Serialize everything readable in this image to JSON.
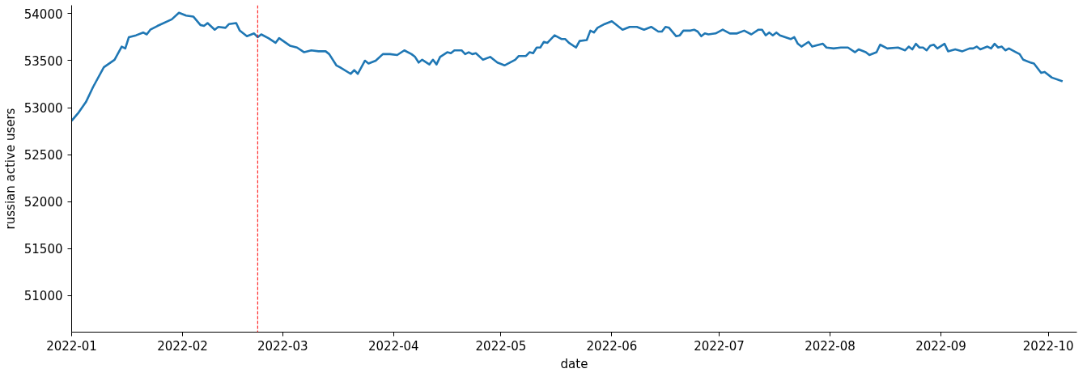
{
  "chart_data": {
    "type": "line",
    "xlabel": "date",
    "ylabel": "russian active users",
    "x": [
      "2022-01-01",
      "2022-01-03",
      "2022-01-05",
      "2022-01-07",
      "2022-01-10",
      "2022-01-13",
      "2022-01-15",
      "2022-01-16",
      "2022-01-17",
      "2022-01-19",
      "2022-01-21",
      "2022-01-22",
      "2022-01-23",
      "2022-01-25",
      "2022-01-29",
      "2022-01-31",
      "2022-02-02",
      "2022-02-04",
      "2022-02-06",
      "2022-02-07",
      "2022-02-08",
      "2022-02-10",
      "2022-02-11",
      "2022-02-13",
      "2022-02-14",
      "2022-02-16",
      "2022-02-17",
      "2022-02-19",
      "2022-02-21",
      "2022-02-22",
      "2022-02-23",
      "2022-02-25",
      "2022-02-27",
      "2022-02-28",
      "2022-03-03",
      "2022-03-05",
      "2022-03-07",
      "2022-03-09",
      "2022-03-11",
      "2022-03-13",
      "2022-03-14",
      "2022-03-16",
      "2022-03-17",
      "2022-03-20",
      "2022-03-21",
      "2022-03-22",
      "2022-03-24",
      "2022-03-25",
      "2022-03-27",
      "2022-03-29",
      "2022-03-31",
      "2022-04-02",
      "2022-04-04",
      "2022-04-06",
      "2022-04-07",
      "2022-04-08",
      "2022-04-09",
      "2022-04-11",
      "2022-04-12",
      "2022-04-13",
      "2022-04-14",
      "2022-04-16",
      "2022-04-17",
      "2022-04-18",
      "2022-04-20",
      "2022-04-21",
      "2022-04-22",
      "2022-04-23",
      "2022-04-24",
      "2022-04-26",
      "2022-04-28",
      "2022-04-30",
      "2022-05-02",
      "2022-05-05",
      "2022-05-06",
      "2022-05-08",
      "2022-05-09",
      "2022-05-10",
      "2022-05-11",
      "2022-05-12",
      "2022-05-13",
      "2022-05-14",
      "2022-05-16",
      "2022-05-18",
      "2022-05-19",
      "2022-05-20",
      "2022-05-22",
      "2022-05-23",
      "2022-05-25",
      "2022-05-26",
      "2022-05-27",
      "2022-05-28",
      "2022-05-30",
      "2022-06-01",
      "2022-06-04",
      "2022-06-06",
      "2022-06-08",
      "2022-06-10",
      "2022-06-12",
      "2022-06-14",
      "2022-06-15",
      "2022-06-16",
      "2022-06-17",
      "2022-06-19",
      "2022-06-20",
      "2022-06-21",
      "2022-06-23",
      "2022-06-24",
      "2022-06-25",
      "2022-06-26",
      "2022-06-27",
      "2022-06-28",
      "2022-06-30",
      "2022-07-02",
      "2022-07-04",
      "2022-07-06",
      "2022-07-08",
      "2022-07-10",
      "2022-07-12",
      "2022-07-13",
      "2022-07-14",
      "2022-07-15",
      "2022-07-16",
      "2022-07-17",
      "2022-07-18",
      "2022-07-21",
      "2022-07-22",
      "2022-07-23",
      "2022-07-24",
      "2022-07-26",
      "2022-07-27",
      "2022-07-30",
      "2022-07-31",
      "2022-08-02",
      "2022-08-04",
      "2022-08-06",
      "2022-08-08",
      "2022-08-09",
      "2022-08-11",
      "2022-08-12",
      "2022-08-14",
      "2022-08-15",
      "2022-08-17",
      "2022-08-20",
      "2022-08-22",
      "2022-08-23",
      "2022-08-24",
      "2022-08-25",
      "2022-08-26",
      "2022-08-27",
      "2022-08-28",
      "2022-08-29",
      "2022-08-30",
      "2022-08-31",
      "2022-09-02",
      "2022-09-03",
      "2022-09-05",
      "2022-09-07",
      "2022-09-09",
      "2022-09-10",
      "2022-09-11",
      "2022-09-12",
      "2022-09-14",
      "2022-09-15",
      "2022-09-16",
      "2022-09-17",
      "2022-09-18",
      "2022-09-19",
      "2022-09-20",
      "2022-09-22",
      "2022-09-23",
      "2022-09-24",
      "2022-09-26",
      "2022-09-27",
      "2022-09-29",
      "2022-09-30",
      "2022-10-02",
      "2022-10-05"
    ],
    "series": [
      {
        "color": "#1f77b4",
        "values": [
          52860,
          52950,
          53060,
          53220,
          53430,
          53510,
          53650,
          53630,
          53750,
          53770,
          53800,
          53780,
          53830,
          53870,
          53940,
          54010,
          53980,
          53970,
          53880,
          53870,
          53900,
          53830,
          53860,
          53850,
          53890,
          53900,
          53820,
          53760,
          53790,
          53750,
          53780,
          53740,
          53690,
          53740,
          53660,
          53640,
          53590,
          53610,
          53600,
          53600,
          53570,
          53450,
          53430,
          53360,
          53400,
          53360,
          53500,
          53470,
          53500,
          53570,
          53570,
          53560,
          53610,
          53570,
          53540,
          53480,
          53510,
          53460,
          53510,
          53460,
          53540,
          53590,
          53580,
          53610,
          53610,
          53570,
          53590,
          53570,
          53580,
          53510,
          53540,
          53480,
          53450,
          53510,
          53550,
          53550,
          53590,
          53580,
          53640,
          53640,
          53700,
          53690,
          53770,
          53730,
          53730,
          53690,
          53640,
          53710,
          53720,
          53820,
          53800,
          53850,
          53890,
          53920,
          53830,
          53860,
          53860,
          53830,
          53860,
          53810,
          53810,
          53860,
          53850,
          53760,
          53770,
          53820,
          53820,
          53830,
          53810,
          53760,
          53790,
          53780,
          53790,
          53830,
          53790,
          53790,
          53820,
          53780,
          53830,
          53830,
          53770,
          53800,
          53770,
          53800,
          53770,
          53730,
          53750,
          53680,
          53650,
          53700,
          53650,
          53680,
          53640,
          53630,
          53640,
          53640,
          53590,
          53620,
          53590,
          53560,
          53590,
          53670,
          53630,
          53640,
          53610,
          53650,
          53620,
          53680,
          53640,
          53640,
          53610,
          53660,
          53670,
          53630,
          53680,
          53600,
          53620,
          53600,
          53630,
          53630,
          53650,
          53620,
          53650,
          53630,
          53680,
          53640,
          53650,
          53610,
          53630,
          53590,
          53570,
          53510,
          53480,
          53470,
          53370,
          53380,
          53320,
          53280
        ]
      }
    ],
    "xlim": [
      "2022-01-01",
      "2022-10-09"
    ],
    "xticks": [
      {
        "value": "2022-01-01",
        "label": "2022-01"
      },
      {
        "value": "2022-02-01",
        "label": "2022-02"
      },
      {
        "value": "2022-03-01",
        "label": "2022-03"
      },
      {
        "value": "2022-04-01",
        "label": "2022-04"
      },
      {
        "value": "2022-05-01",
        "label": "2022-05"
      },
      {
        "value": "2022-06-01",
        "label": "2022-06"
      },
      {
        "value": "2022-07-01",
        "label": "2022-07"
      },
      {
        "value": "2022-08-01",
        "label": "2022-08"
      },
      {
        "value": "2022-09-01",
        "label": "2022-09"
      },
      {
        "value": "2022-10-01",
        "label": "2022-10"
      }
    ],
    "ylim": [
      50610,
      54090
    ],
    "yticks": [
      51000,
      51500,
      52000,
      52500,
      53000,
      53500,
      54000
    ],
    "ref_lines": [
      {
        "axis": "x",
        "value": "2022-02-22",
        "color": "#ff0000",
        "line_style": "dashed"
      }
    ],
    "grid": false,
    "line_style": "solid",
    "marker": "none"
  }
}
